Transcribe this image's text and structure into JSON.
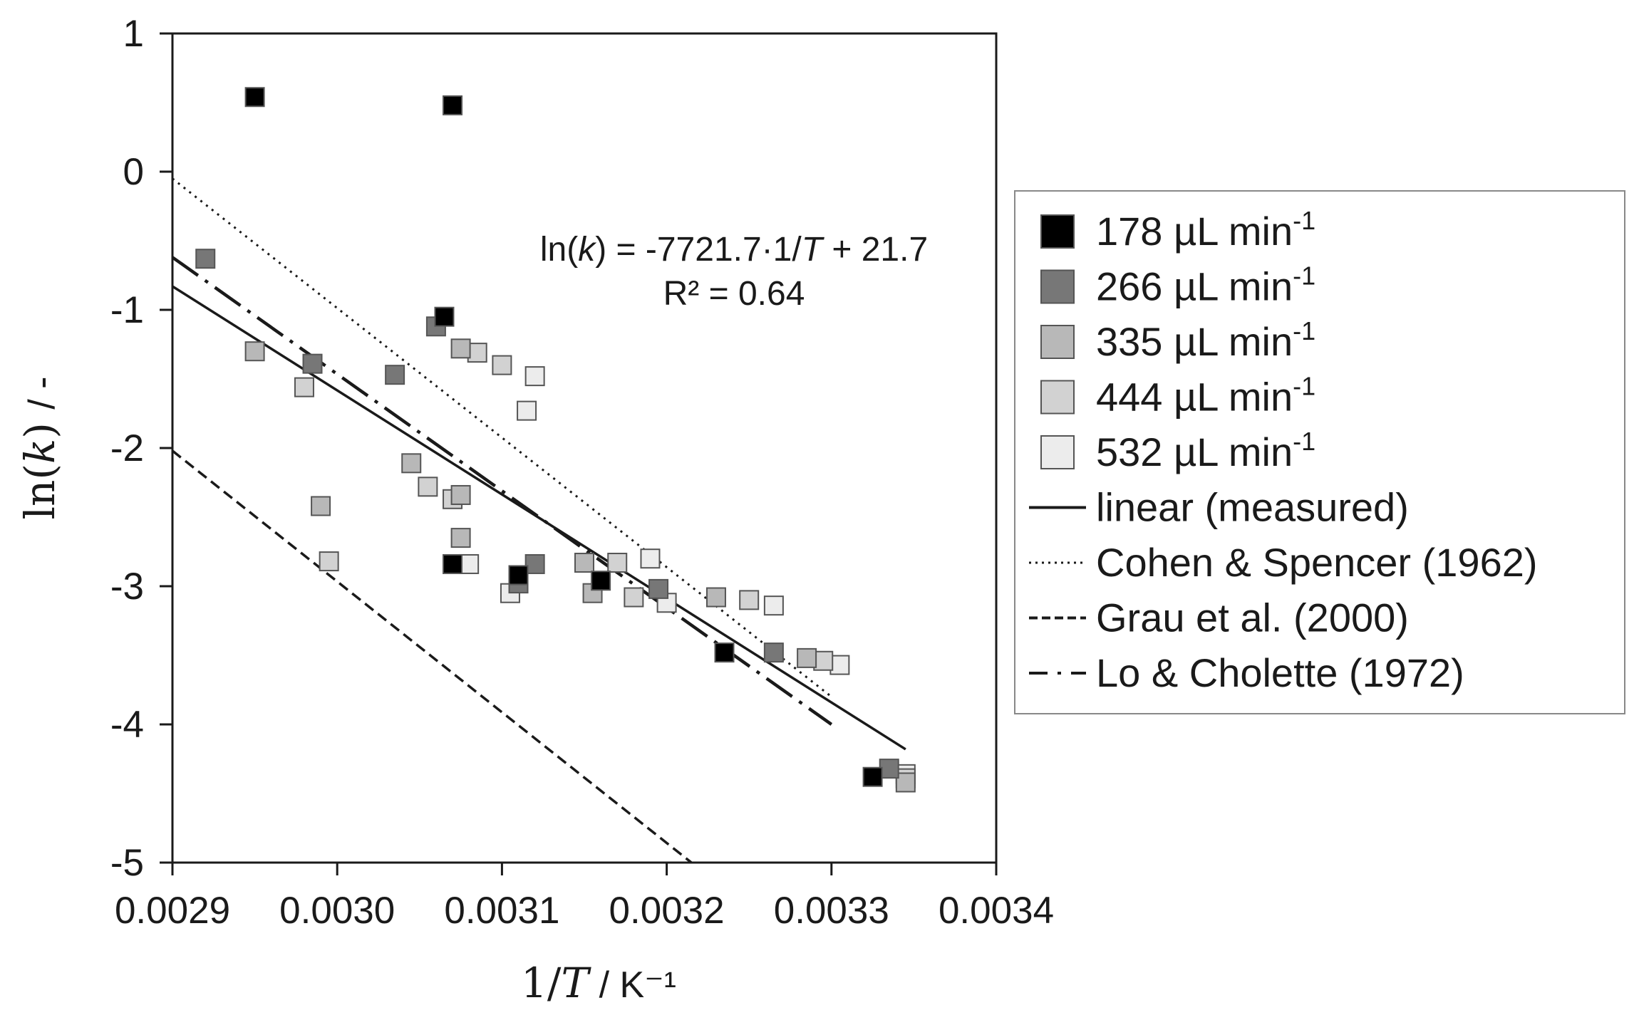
{
  "chart_data": {
    "type": "scatter",
    "xlabel": "1/T / K⁻¹",
    "ylabel": "ln(k) / -",
    "xlim": [
      0.0029,
      0.0034
    ],
    "ylim": [
      -5,
      1
    ],
    "xticks": [
      "0.0029",
      "0.0030",
      "0.0031",
      "0.0032",
      "0.0033",
      "0.0034"
    ],
    "yticks": [
      "1",
      "0",
      "-1",
      "-2",
      "-3",
      "-4",
      "-5"
    ],
    "grid": false,
    "legend_position": "right, outside plot",
    "annotation": {
      "equation_prefix": "ln(",
      "equation_var": "k",
      "equation_mid": ") = -7721.7·1/",
      "equation_var2": "T",
      "equation_suffix": " + 21.7",
      "r2": "R² = 0.64"
    },
    "series": [
      {
        "name": "178 µL min⁻¹",
        "color": "#000000",
        "points": [
          [
            0.00295,
            0.54
          ],
          [
            0.00307,
            0.48
          ],
          [
            0.003065,
            -1.05
          ],
          [
            0.00307,
            -2.84
          ],
          [
            0.00311,
            -2.92
          ],
          [
            0.00316,
            -2.96
          ],
          [
            0.003235,
            -3.48
          ],
          [
            0.003325,
            -4.38
          ]
        ]
      },
      {
        "name": "266 µL min⁻¹",
        "color": "#777777",
        "points": [
          [
            0.00292,
            -0.63
          ],
          [
            0.002985,
            -1.39
          ],
          [
            0.003035,
            -1.47
          ],
          [
            0.00306,
            -1.12
          ],
          [
            0.00311,
            -2.98
          ],
          [
            0.00312,
            -2.84
          ],
          [
            0.003195,
            -3.02
          ],
          [
            0.003265,
            -3.48
          ],
          [
            0.003335,
            -4.32
          ]
        ]
      },
      {
        "name": "335 µL min⁻¹",
        "color": "#b8b8b8",
        "points": [
          [
            0.00295,
            -1.3
          ],
          [
            0.00299,
            -2.42
          ],
          [
            0.003045,
            -2.11
          ],
          [
            0.003075,
            -1.28
          ],
          [
            0.003075,
            -2.34
          ],
          [
            0.003075,
            -2.65
          ],
          [
            0.00315,
            -2.83
          ],
          [
            0.003155,
            -3.05
          ],
          [
            0.00323,
            -3.08
          ],
          [
            0.003285,
            -3.52
          ],
          [
            0.003345,
            -4.42
          ]
        ]
      },
      {
        "name": "444 µL min⁻¹",
        "color": "#d2d2d2",
        "points": [
          [
            0.00298,
            -1.56
          ],
          [
            0.002995,
            -2.82
          ],
          [
            0.003055,
            -2.28
          ],
          [
            0.003085,
            -1.31
          ],
          [
            0.00307,
            -2.37
          ],
          [
            0.0031,
            -1.4
          ],
          [
            0.00317,
            -2.83
          ],
          [
            0.00318,
            -3.08
          ],
          [
            0.00325,
            -3.1
          ],
          [
            0.003295,
            -3.54
          ],
          [
            0.003345,
            -4.39
          ]
        ]
      },
      {
        "name": "532 µL min⁻¹",
        "color": "#ececec",
        "points": [
          [
            0.003105,
            -3.05
          ],
          [
            0.003115,
            -1.73
          ],
          [
            0.00308,
            -2.84
          ],
          [
            0.00312,
            -1.48
          ],
          [
            0.00319,
            -2.8
          ],
          [
            0.0032,
            -3.12
          ],
          [
            0.003265,
            -3.14
          ],
          [
            0.003305,
            -3.57
          ],
          [
            0.003345,
            -4.36
          ]
        ]
      }
    ],
    "lines": [
      {
        "name": "linear (measured)",
        "style": "solid",
        "points": [
          [
            0.0029,
            -0.83
          ],
          [
            0.003345,
            -4.18
          ]
        ]
      },
      {
        "name": "Cohen & Spencer (1962)",
        "style": "dotted",
        "points": [
          [
            0.0029,
            -0.05
          ],
          [
            0.0033,
            -3.8
          ]
        ]
      },
      {
        "name": "Grau et al. (2000)",
        "style": "dashed",
        "points": [
          [
            0.0029,
            -2.02
          ],
          [
            0.003215,
            -5.0
          ]
        ]
      },
      {
        "name": "Lo & Cholette (1972)",
        "style": "dashdot",
        "points": [
          [
            0.0029,
            -0.62
          ],
          [
            0.0033,
            -4.0
          ]
        ]
      }
    ]
  }
}
